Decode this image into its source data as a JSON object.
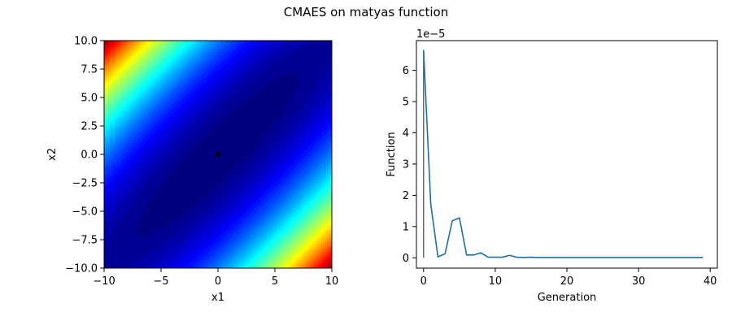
{
  "figure": {
    "title": "CMAES on matyas function"
  },
  "chart_data": [
    {
      "type": "heatmap",
      "title": "",
      "xlabel": "x1",
      "ylabel": "x2",
      "xlim": [
        -10,
        10
      ],
      "ylim": [
        -10,
        10
      ],
      "x_ticks": [
        "−10",
        "−5",
        "0",
        "5",
        "10"
      ],
      "y_ticks": [
        "10.0",
        "7.5",
        "5.0",
        "2.5",
        "0.0",
        "−2.5",
        "−5.0",
        "−7.5",
        "−10.0"
      ],
      "colormap": "jet",
      "function": "0.26*(x1^2 + x2^2) - 0.48*x1*x2",
      "grid": false,
      "marker": {
        "x": 0,
        "y": 0,
        "color": "#000000"
      }
    },
    {
      "type": "line",
      "title": "",
      "xlabel": "Generation",
      "ylabel": "Function",
      "scale_label": "1e−5",
      "xlim": [
        -1,
        41
      ],
      "ylim": [
        -0.33,
        6.95
      ],
      "x_ticks": [
        "0",
        "10",
        "20",
        "30",
        "40"
      ],
      "y_ticks": [
        "0",
        "1",
        "2",
        "3",
        "4",
        "5",
        "6"
      ],
      "grid": false,
      "series": [
        {
          "color": "#1f6fa3",
          "x": [
            0,
            1,
            2,
            3,
            4,
            5,
            6,
            7,
            8,
            9,
            10,
            11,
            12,
            13,
            14,
            15,
            16,
            17,
            18,
            19,
            20,
            21,
            22,
            23,
            24,
            25,
            26,
            27,
            28,
            29,
            30,
            31,
            32,
            33,
            34,
            35,
            36,
            37,
            38,
            39
          ],
          "y": [
            6.65,
            1.72,
            0.03,
            0.13,
            1.18,
            1.28,
            0.09,
            0.09,
            0.16,
            0.02,
            0.02,
            0.02,
            0.08,
            0.02,
            0.01,
            0.02,
            0.01,
            0.01,
            0.01,
            0.01,
            0.01,
            0.01,
            0.01,
            0.01,
            0.01,
            0.01,
            0.01,
            0.01,
            0.01,
            0.01,
            0.01,
            0.01,
            0.01,
            0.01,
            0.01,
            0.01,
            0.01,
            0.01,
            0.01,
            0.01
          ]
        }
      ],
      "vline": {
        "x": 0,
        "y0": 0,
        "y1": 6.65,
        "color": "#444444"
      }
    }
  ]
}
